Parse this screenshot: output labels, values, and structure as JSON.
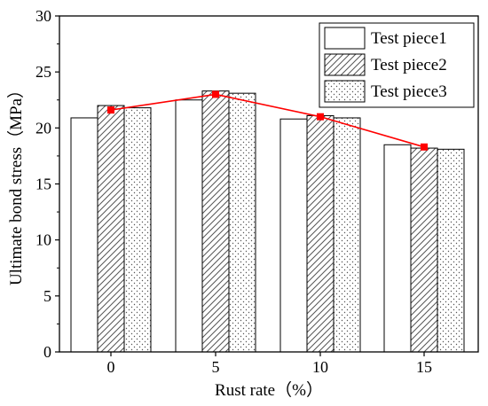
{
  "chart_data": {
    "type": "bar",
    "xlabel": "Rust rate（%）",
    "ylabel": "Ultimate bond stress（MPa）",
    "categories": [
      "0",
      "5",
      "10",
      "15"
    ],
    "ylim": [
      0,
      30
    ],
    "yticks": [
      "0",
      "5",
      "10",
      "15",
      "20",
      "25",
      "30"
    ],
    "series": [
      {
        "name": "Test piece1",
        "values": [
          20.9,
          22.5,
          20.8,
          18.5
        ],
        "pattern": "plain"
      },
      {
        "name": "Test piece2",
        "values": [
          22.0,
          23.3,
          21.1,
          18.2
        ],
        "pattern": "diagonal-hatch"
      },
      {
        "name": "Test piece3",
        "values": [
          21.8,
          23.1,
          20.9,
          18.1
        ],
        "pattern": "dots"
      }
    ],
    "overlay_line": {
      "values": [
        21.6,
        23.0,
        21.0,
        18.3
      ],
      "color": "#ff0000",
      "marker": "square"
    },
    "legend_position": "top-right",
    "grid": false
  }
}
